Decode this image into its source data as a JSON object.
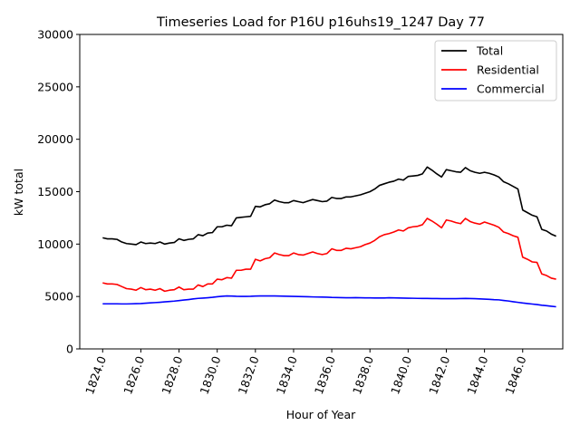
{
  "chart_data": {
    "type": "line",
    "title": "Timeseries Load for P16U p16uhs19_1247  Day 77",
    "xlabel": "Hour of Year",
    "ylabel": "kW total",
    "xlim": [
      1822.8,
      1848.1
    ],
    "ylim": [
      0,
      30000
    ],
    "x_ticks": [
      1824,
      1826,
      1828,
      1830,
      1832,
      1834,
      1836,
      1838,
      1840,
      1842,
      1844,
      1846
    ],
    "x_tick_labels": [
      "1824.0",
      "1826.0",
      "1828.0",
      "1830.0",
      "1832.0",
      "1834.0",
      "1836.0",
      "1838.0",
      "1840.0",
      "1842.0",
      "1844.0",
      "1846.0"
    ],
    "y_ticks": [
      0,
      5000,
      10000,
      15000,
      20000,
      25000,
      30000
    ],
    "y_tick_labels": [
      "0",
      "5000",
      "10000",
      "15000",
      "20000",
      "25000",
      "30000"
    ],
    "legend_position": "top-right",
    "x_start": 1824,
    "x_step": 0.25,
    "series": [
      {
        "name": "Total",
        "color": "#000000",
        "values": [
          10600,
          10500,
          10500,
          10450,
          10200,
          10050,
          10000,
          9950,
          10200,
          10050,
          10100,
          10050,
          10200,
          10000,
          10100,
          10150,
          10500,
          10350,
          10450,
          10500,
          10900,
          10800,
          11050,
          11100,
          11650,
          11650,
          11800,
          11750,
          12500,
          12550,
          12600,
          12650,
          13600,
          13550,
          13750,
          13850,
          14200,
          14050,
          13950,
          13950,
          14150,
          14050,
          13950,
          14100,
          14250,
          14150,
          14050,
          14100,
          14450,
          14350,
          14350,
          14500,
          14500,
          14600,
          14700,
          14850,
          15000,
          15250,
          15600,
          15750,
          15900,
          16000,
          16200,
          16100,
          16450,
          16500,
          16550,
          16700,
          17350,
          17050,
          16700,
          16400,
          17100,
          17000,
          16900,
          16850,
          17300,
          17000,
          16850,
          16750,
          16850,
          16750,
          16600,
          16400,
          15950,
          15750,
          15500,
          15250,
          13250,
          13000,
          12750,
          12600,
          11400,
          11250,
          10950,
          10750
        ]
      },
      {
        "name": "Residential",
        "color": "#ff0000",
        "values": [
          6300,
          6200,
          6200,
          6150,
          5950,
          5750,
          5700,
          5600,
          5850,
          5650,
          5700,
          5600,
          5750,
          5500,
          5600,
          5650,
          5900,
          5650,
          5700,
          5700,
          6100,
          5950,
          6200,
          6200,
          6650,
          6600,
          6800,
          6750,
          7500,
          7500,
          7600,
          7600,
          8550,
          8400,
          8600,
          8700,
          9150,
          9000,
          8900,
          8900,
          9150,
          9000,
          8950,
          9100,
          9250,
          9100,
          9000,
          9100,
          9550,
          9400,
          9400,
          9600,
          9550,
          9650,
          9750,
          9950,
          10100,
          10350,
          10700,
          10900,
          11000,
          11150,
          11350,
          11250,
          11550,
          11650,
          11700,
          11850,
          12450,
          12200,
          11900,
          11550,
          12300,
          12200,
          12050,
          11950,
          12450,
          12150,
          12000,
          11900,
          12100,
          11950,
          11800,
          11600,
          11150,
          11000,
          10800,
          10650,
          8750,
          8550,
          8300,
          8250,
          7150,
          7000,
          6750,
          6650
        ]
      },
      {
        "name": "Commercial",
        "color": "#0000ff",
        "values": [
          4300,
          4300,
          4300,
          4300,
          4290,
          4290,
          4300,
          4320,
          4330,
          4360,
          4390,
          4420,
          4450,
          4490,
          4520,
          4560,
          4610,
          4660,
          4710,
          4770,
          4820,
          4850,
          4880,
          4920,
          4980,
          5020,
          5050,
          5040,
          5020,
          5010,
          5010,
          5020,
          5040,
          5050,
          5050,
          5050,
          5050,
          5040,
          5030,
          5020,
          5010,
          5000,
          4990,
          4980,
          4960,
          4950,
          4940,
          4930,
          4910,
          4900,
          4890,
          4880,
          4880,
          4890,
          4880,
          4870,
          4870,
          4860,
          4860,
          4860,
          4880,
          4870,
          4860,
          4850,
          4840,
          4830,
          4820,
          4810,
          4810,
          4800,
          4800,
          4790,
          4790,
          4790,
          4790,
          4800,
          4810,
          4800,
          4790,
          4770,
          4750,
          4730,
          4700,
          4680,
          4620,
          4570,
          4500,
          4440,
          4380,
          4330,
          4280,
          4230,
          4170,
          4120,
          4070,
          4020
        ]
      }
    ]
  }
}
